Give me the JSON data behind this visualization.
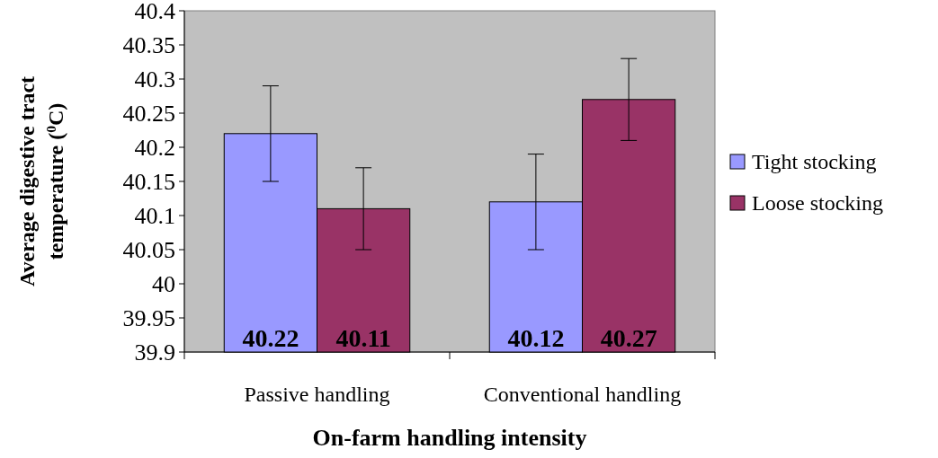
{
  "chart_data": {
    "type": "bar",
    "xlabel": "On-farm handling intensity",
    "ylabel": "Average digestive tract temperature ($^{0}$C)",
    "categories": [
      "Passive handling",
      "Conventional handling"
    ],
    "series": [
      {
        "name": "Tight stocking",
        "color": "#9999ff",
        "values": [
          40.22,
          40.12
        ],
        "errors": [
          0.07,
          0.07
        ]
      },
      {
        "name": "Loose stocking",
        "color": "#993366",
        "values": [
          40.11,
          40.27
        ],
        "errors": [
          0.06,
          0.06
        ]
      }
    ],
    "ylim": [
      39.9,
      40.4
    ],
    "yticks": [
      39.9,
      39.95,
      40,
      40.05,
      40.1,
      40.15,
      40.2,
      40.25,
      40.3,
      40.35,
      40.4
    ],
    "data_labels": true,
    "legend": "right",
    "grid": false
  }
}
